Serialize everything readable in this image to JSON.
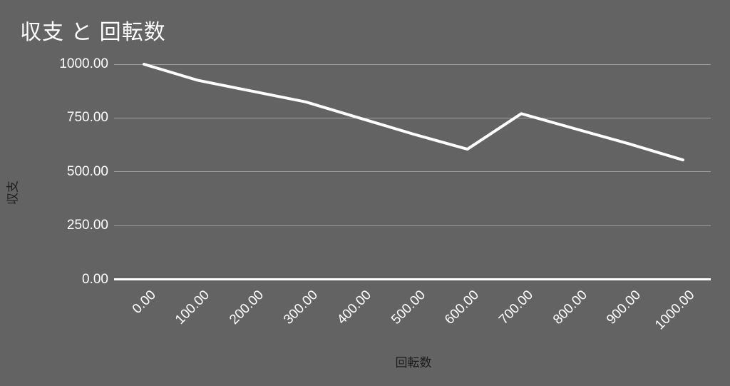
{
  "chart_data": {
    "type": "line",
    "title": "収支 と 回転数",
    "xlabel": "回転数",
    "ylabel": "収支",
    "x": [
      0,
      100,
      200,
      300,
      400,
      500,
      600,
      700,
      800,
      900,
      1000
    ],
    "series": [
      {
        "name": "収支",
        "values": [
          1000,
          925,
          875,
          825,
          750,
          675,
          605,
          770,
          700,
          630,
          555
        ]
      }
    ],
    "xlim": [
      0,
      1000
    ],
    "ylim": [
      0,
      1000
    ],
    "x_tick_labels": [
      "0.00",
      "100.00",
      "200.00",
      "300.00",
      "400.00",
      "500.00",
      "600.00",
      "700.00",
      "800.00",
      "900.00",
      "1000.00"
    ],
    "y_tick_labels": [
      "0.00",
      "250.00",
      "500.00",
      "750.00",
      "1000.00"
    ],
    "grid": true,
    "legend": "none",
    "colors": {
      "background": "#636363",
      "line": "#ffffff",
      "gridline": "rgba(255,255,255,0.38)",
      "zero_axis_line": "#ffffff",
      "title_text": "#ffffff",
      "tick_text": "#ffffff",
      "axis_title_text": "#1c1c1c"
    }
  }
}
